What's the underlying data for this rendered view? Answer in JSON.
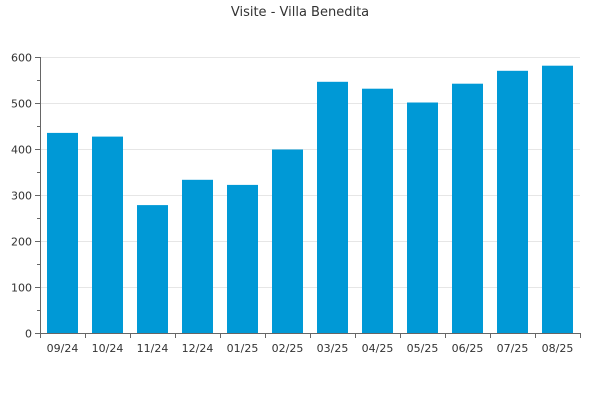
{
  "chart_data": {
    "type": "bar",
    "title": "Visite - Villa Benedita",
    "categories": [
      "09/24",
      "10/24",
      "11/24",
      "12/24",
      "01/25",
      "02/25",
      "03/25",
      "04/25",
      "05/25",
      "06/25",
      "07/25",
      "08/25"
    ],
    "values": [
      435,
      427,
      278,
      333,
      322,
      399,
      546,
      531,
      501,
      542,
      570,
      581
    ],
    "xlabel": "",
    "ylabel": "",
    "ylim": [
      0,
      600
    ],
    "yticks": [
      0,
      100,
      200,
      300,
      400,
      500,
      600
    ],
    "grid": true,
    "legend": "none",
    "colors": {
      "bar": "#0099d6",
      "grid": "#e6e6e6",
      "axis": "#666666",
      "text": "#333333"
    }
  }
}
